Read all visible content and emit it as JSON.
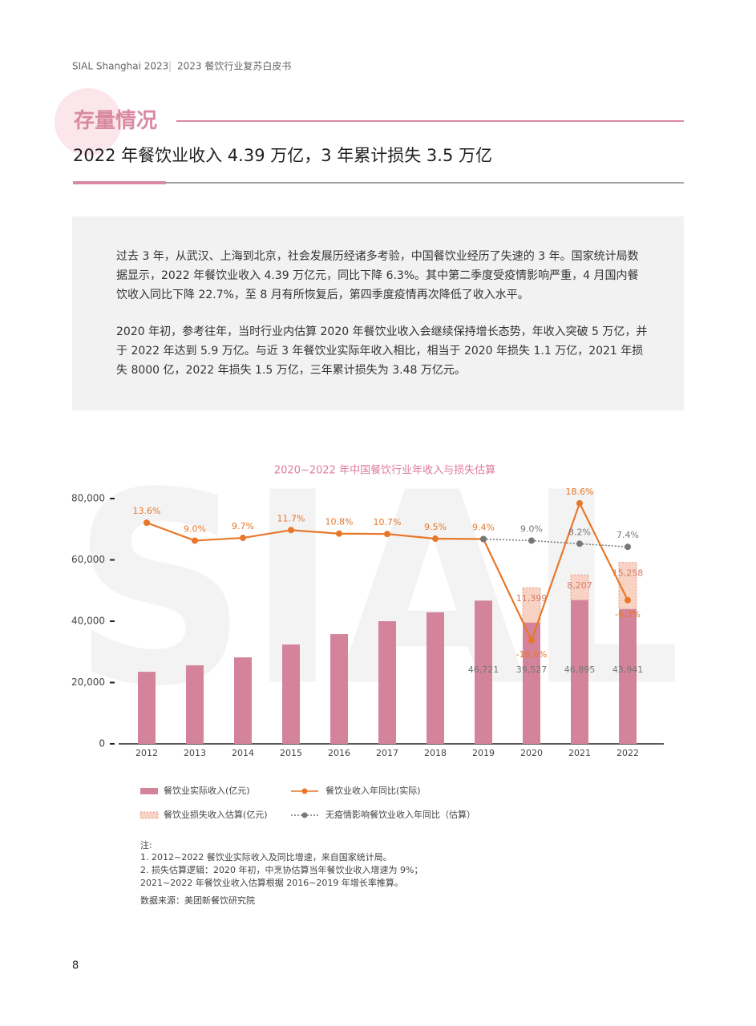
{
  "header": {
    "brand": "SIAL Shanghai 2023",
    "title": "2023 餐饮行业复苏白皮书"
  },
  "section": "存量情况",
  "headline": "2022 年餐饮业收入 4.39 万亿，3 年累计损失 3.5 万亿",
  "paragraphs": [
    "过去 3 年，从武汉、上海到北京，社会发展历经诸多考验，中国餐饮业经历了失速的 3 年。国家统计局数据显示，2022 年餐饮业收入 4.39 万亿元，同比下降 6.3%。其中第二季度受疫情影响严重，4 月国内餐饮收入同比下降 22.7%，至 8 月有所恢复后，第四季度疫情再次降低了收入水平。",
    "2020 年初，参考往年，当时行业内估算 2020 年餐饮业收入会继续保持增长态势，年收入突破 5 万亿，并于 2022 年达到 5.9 万亿。与近 3 年餐饮业实际年收入相比，相当于 2020 年损失 1.1 万亿，2021 年损失 8000 亿，2022 年损失 1.5 万亿，三年累计损失为 3.48 万亿元。"
  ],
  "watermark": "SIAL",
  "chart_data": {
    "type": "combo",
    "title": "2020~2022 年中国餐饮行业年收入与损失估算",
    "categories": [
      "2012",
      "2013",
      "2014",
      "2015",
      "2016",
      "2017",
      "2018",
      "2019",
      "2020",
      "2021",
      "2022"
    ],
    "ylim": [
      0,
      80000
    ],
    "yticks": [
      0,
      {
        "value": 20000,
        "label": "20,000"
      },
      {
        "value": 40000,
        "label": "40,000"
      },
      {
        "value": 60000,
        "label": "60,000"
      },
      {
        "value": 80000,
        "label": "80,000"
      }
    ],
    "y2lim": [
      -43.2,
      19.8
    ],
    "series": [
      {
        "name": "餐饮业实际收入(亿元)",
        "type": "bar",
        "color": "#d4849a",
        "values": [
          23500,
          25600,
          28200,
          32400,
          35800,
          40000,
          42900,
          46721,
          39527,
          46895,
          43941
        ],
        "value_labels": [
          null,
          null,
          null,
          null,
          null,
          null,
          null,
          "46,721",
          "39,527",
          "46,895",
          "43,941"
        ]
      },
      {
        "name": "餐饮业损失收入估算(亿元)",
        "type": "bar",
        "stacked": true,
        "color": "#f8d3c4",
        "values": [
          null,
          null,
          null,
          null,
          null,
          null,
          null,
          null,
          11399,
          8207,
          15258
        ],
        "value_labels": [
          null,
          null,
          null,
          null,
          null,
          null,
          null,
          null,
          "11,399",
          "8,207",
          "15,258"
        ]
      },
      {
        "name": "餐饮业收入年同比(实际)",
        "type": "line",
        "axis": "y2",
        "color": "#e8772a",
        "values": [
          13.6,
          9.0,
          9.7,
          11.7,
          10.8,
          10.7,
          9.5,
          9.4,
          -16.6,
          18.6,
          -6.3
        ],
        "value_labels": [
          "13.6%",
          "9.0%",
          "9.7%",
          "11.7%",
          "10.8%",
          "10.7%",
          "9.5%",
          "9.4%",
          "-16.6%",
          "18.6%",
          "-6.3%"
        ]
      },
      {
        "name": "无疫情影响餐饮业收入年同比（估算）",
        "type": "line",
        "axis": "y2",
        "dashed": true,
        "color": "#777777",
        "values": [
          null,
          null,
          null,
          null,
          null,
          null,
          null,
          9.4,
          9.0,
          8.2,
          7.4
        ],
        "value_labels": [
          null,
          null,
          null,
          null,
          null,
          null,
          null,
          null,
          "9.0%",
          "8.2%",
          "7.4%"
        ]
      }
    ]
  },
  "notes": {
    "label": "注:",
    "lines": [
      "1. 2012~2022 餐饮业实际收入及同比增速，来自国家统计局。",
      "2. 损失估算逻辑：2020 年初，中烹协估算当年餐饮业收入增速为 9%；",
      "2021~2022 年餐饮业收入估算根据 2016~2019 年增长率推算。"
    ]
  },
  "source": "数据来源：美团新餐饮研究院",
  "page_number": "8"
}
